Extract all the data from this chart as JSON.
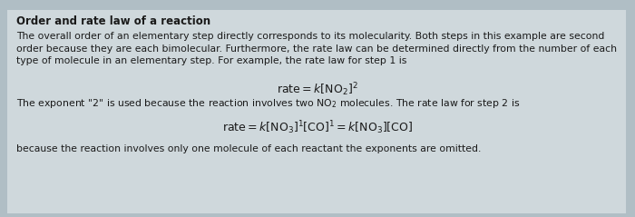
{
  "outer_bg": "#b0bec5",
  "box_color": "#cfd8dc",
  "title": "Order and rate law of a reaction",
  "para1_line1": "The overall order of an elementary step directly corresponds to its molecularity. Both steps in this example are second",
  "para1_line2": "order because they are each bimolecular. Furthermore, the rate law can be determined directly from the number of each",
  "para1_line3": "type of molecule in an elementary step. For example, the rate law for step 1 is",
  "equation1": "$\\mathrm{rate} = k[\\mathrm{NO}_2]^2$",
  "middle_text": "The exponent \"2\" is used because the reaction involves two NO$_2$ molecules. The rate law for step 2 is",
  "equation2": "$\\mathrm{rate} = k[\\mathrm{NO}_3]^1[\\mathrm{CO}]^1 = k[\\mathrm{NO}_3][\\mathrm{CO}]$",
  "footer_text": "because the reaction involves only one molecule of each reactant the exponents are omitted.",
  "text_color": "#1a1a1a",
  "title_fontsize": 8.5,
  "body_fontsize": 7.8,
  "eq_fontsize": 9.0
}
